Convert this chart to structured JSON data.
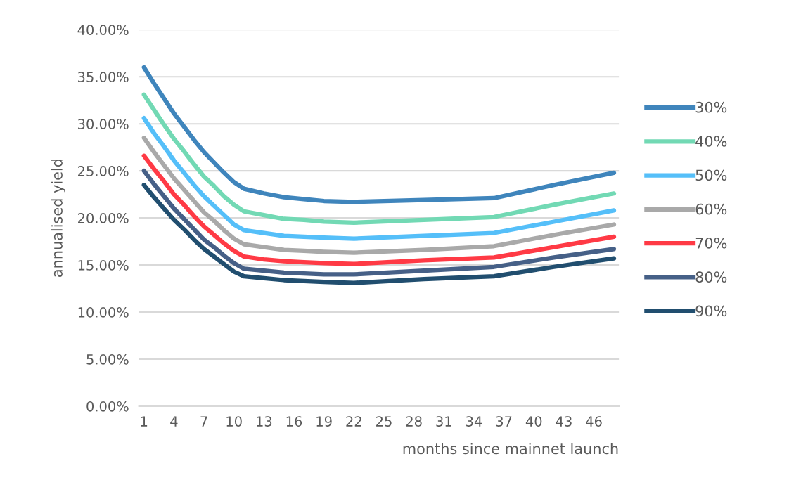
{
  "chart_data": {
    "type": "line",
    "xlabel": "months since mainnet launch",
    "ylabel": "annualised yield",
    "x": [
      1,
      2,
      3,
      4,
      5,
      6,
      7,
      8,
      9,
      10,
      11,
      13,
      15,
      17,
      19,
      22,
      29,
      36,
      42,
      48
    ],
    "xlim": [
      0.5,
      48.5
    ],
    "xticks": [
      1,
      4,
      7,
      10,
      13,
      16,
      19,
      22,
      25,
      28,
      31,
      34,
      37,
      40,
      43,
      46
    ],
    "ylim": [
      0,
      40
    ],
    "yticks": [
      {
        "value": 0,
        "label": "0.00%"
      },
      {
        "value": 5,
        "label": "5.00%"
      },
      {
        "value": 10,
        "label": "10.00%"
      },
      {
        "value": 15,
        "label": "15.00%"
      },
      {
        "value": 20,
        "label": "20.00%"
      },
      {
        "value": 25,
        "label": "25.00%"
      },
      {
        "value": 30,
        "label": "30.00%"
      },
      {
        "value": 35,
        "label": "35.00%"
      },
      {
        "value": 40,
        "label": "40.00%"
      }
    ],
    "grid": "y",
    "legend": "right",
    "marker": "none",
    "line_style": "solid",
    "series": [
      {
        "name": "30%",
        "color": "#3f85bc",
        "values": [
          36.0,
          34.3,
          32.7,
          31.1,
          29.7,
          28.3,
          27.0,
          25.9,
          24.8,
          23.8,
          23.1,
          22.6,
          22.2,
          22.0,
          21.8,
          21.7,
          21.9,
          22.1,
          23.5,
          24.8
        ]
      },
      {
        "name": "40%",
        "color": "#72d9b4",
        "values": [
          33.1,
          31.5,
          29.9,
          28.4,
          27.1,
          25.7,
          24.4,
          23.4,
          22.3,
          21.4,
          20.7,
          20.3,
          19.9,
          19.8,
          19.6,
          19.5,
          19.8,
          20.1,
          21.4,
          22.6
        ]
      },
      {
        "name": "50%",
        "color": "#55bff9",
        "values": [
          30.6,
          29.0,
          27.6,
          26.1,
          24.8,
          23.5,
          22.3,
          21.3,
          20.3,
          19.3,
          18.7,
          18.4,
          18.1,
          18.0,
          17.9,
          17.8,
          18.1,
          18.4,
          19.6,
          20.8
        ]
      },
      {
        "name": "60%",
        "color": "#a9a9a9",
        "values": [
          28.5,
          27.0,
          25.6,
          24.2,
          23.0,
          21.8,
          20.6,
          19.7,
          18.7,
          17.8,
          17.2,
          16.9,
          16.6,
          16.5,
          16.4,
          16.3,
          16.6,
          17.0,
          18.2,
          19.3
        ]
      },
      {
        "name": "70%",
        "color": "#ff3a45",
        "values": [
          26.6,
          25.2,
          23.9,
          22.5,
          21.4,
          20.2,
          19.1,
          18.2,
          17.3,
          16.5,
          15.9,
          15.6,
          15.4,
          15.3,
          15.2,
          15.1,
          15.5,
          15.8,
          16.9,
          18.0
        ]
      },
      {
        "name": "80%",
        "color": "#466087",
        "values": [
          25.0,
          23.6,
          22.3,
          21.0,
          19.9,
          18.8,
          17.7,
          16.9,
          16.0,
          15.2,
          14.6,
          14.4,
          14.2,
          14.1,
          14.0,
          14.0,
          14.4,
          14.8,
          15.8,
          16.7
        ]
      },
      {
        "name": "90%",
        "color": "#214e6f",
        "values": [
          23.5,
          22.2,
          21.0,
          19.8,
          18.8,
          17.7,
          16.7,
          15.9,
          15.1,
          14.3,
          13.8,
          13.6,
          13.4,
          13.3,
          13.2,
          13.1,
          13.5,
          13.8,
          14.8,
          15.7
        ]
      }
    ]
  }
}
